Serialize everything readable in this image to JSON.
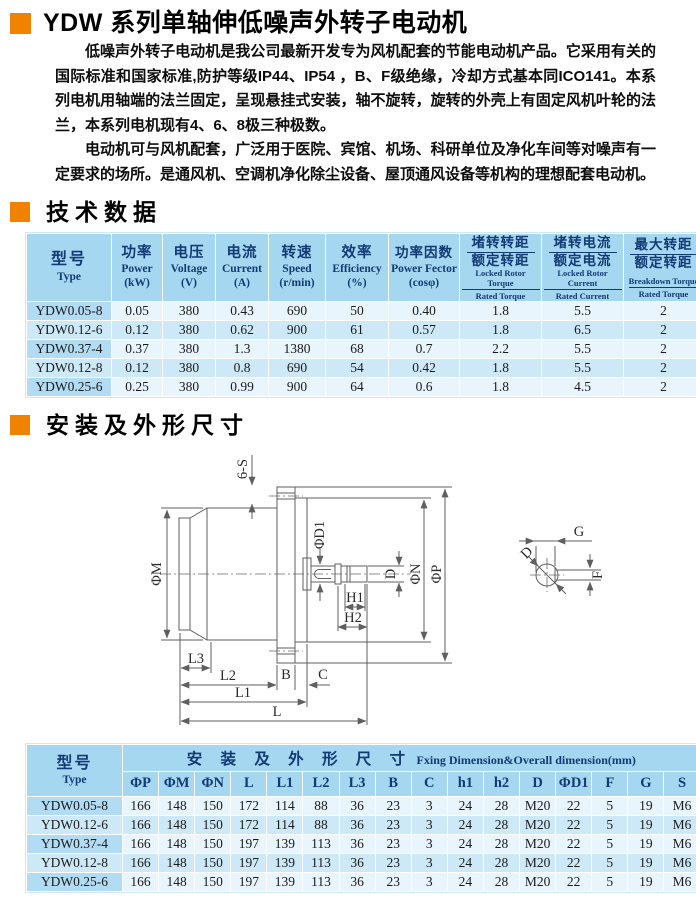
{
  "page_title": "YDW 系列单轴伸低噪声外转子电动机",
  "intro": {
    "p1": "低噪声外转子电动机是我公司最新开发专为风机配套的节能电动机产品。它采用有关的国际标准和国家标准,防护等级IP44、IP54 ，B、F级绝缘，冷却方式基本同ICO141。本系列电机用轴端的法兰固定，呈现悬挂式安装，轴不旋转，旋转的外壳上有固定风机叶轮的法兰，本系列电机现有4、6、8极三种极数。",
    "p2": "电动机可与风机配套，广泛用于医院、宾馆、机场、科研单位及净化车间等对噪声有一定要求的场所。是通风机、空调机净化除尘设备、屋顶通风设备等机构的理想配套电动机。"
  },
  "sections": {
    "tech": "技术数据",
    "install": "安装及外形尺寸"
  },
  "colors": {
    "accent_orange": "#f08200",
    "table_header_bg": "#a6d7f0",
    "row_light": "#e9f5fc",
    "row_mid": "#cde9f7",
    "model_col_bg": "#b2dcf4",
    "header_text": "#123a75"
  },
  "tech_table": {
    "col_type": {
      "zh": "型号",
      "en": "Type"
    },
    "cols": [
      {
        "zh": "功率",
        "en": "Power",
        "unit": "(kW)"
      },
      {
        "zh": "电压",
        "en": "Voltage",
        "unit": "(V)"
      },
      {
        "zh": "电流",
        "en": "Current",
        "unit": "(A)"
      },
      {
        "zh": "转速",
        "en": "Speed",
        "unit": "(r/min)"
      },
      {
        "zh": "效率",
        "en": "Efficiency",
        "unit": "(%)"
      },
      {
        "zh": "功率因数",
        "en": "Power Fector",
        "unit": "(cosφ)"
      }
    ],
    "ratio_cols": [
      {
        "zh_top": "堵转转距",
        "zh_bottom": "额定转距",
        "en_top": "Locked Rotor Torque",
        "en_bottom": "Rated Torque"
      },
      {
        "zh_top": "堵转电流",
        "zh_bottom": "额定电流",
        "en_top": "Locked Rotor Current",
        "en_bottom": "Rated Current"
      },
      {
        "zh_top": "最大转距",
        "zh_bottom": "额定转距",
        "en_top": "Breakdown Torque",
        "en_bottom": "Rated Torque"
      }
    ],
    "rows": [
      [
        "YDW0.05-8",
        "0.05",
        "380",
        "0.43",
        "690",
        "50",
        "0.40",
        "1.8",
        "5.5",
        "2"
      ],
      [
        "YDW0.12-6",
        "0.12",
        "380",
        "0.62",
        "900",
        "61",
        "0.57",
        "1.8",
        "6.5",
        "2"
      ],
      [
        "YDW0.37-4",
        "0.37",
        "380",
        "1.3",
        "1380",
        "68",
        "0.7",
        "2.2",
        "5.5",
        "2"
      ],
      [
        "YDW0.12-8",
        "0.12",
        "380",
        "0.8",
        "690",
        "54",
        "0.42",
        "1.8",
        "5.5",
        "2"
      ],
      [
        "YDW0.25-6",
        "0.25",
        "380",
        "0.99",
        "900",
        "64",
        "0.6",
        "1.8",
        "4.5",
        "2"
      ]
    ]
  },
  "dim_table": {
    "col_type": {
      "zh": "型号",
      "en": "Type"
    },
    "title_zh": "安 装 及 外 形 尺 寸",
    "title_en": "Fxing Dimension&Overall dimension(mm)",
    "headers": [
      "ΦP",
      "ΦM",
      "ΦN",
      "L",
      "L1",
      "L2",
      "L3",
      "B",
      "C",
      "h1",
      "h2",
      "D",
      "ΦD1",
      "F",
      "G",
      "S"
    ],
    "rows": [
      [
        "YDW0.05-8",
        "166",
        "148",
        "150",
        "172",
        "114",
        "88",
        "36",
        "23",
        "3",
        "24",
        "28",
        "M20",
        "22",
        "5",
        "19",
        "M6"
      ],
      [
        "YDW0.12-6",
        "166",
        "148",
        "150",
        "172",
        "114",
        "88",
        "36",
        "23",
        "3",
        "24",
        "28",
        "M20",
        "22",
        "5",
        "19",
        "M6"
      ],
      [
        "YDW0.37-4",
        "166",
        "148",
        "150",
        "197",
        "139",
        "113",
        "36",
        "23",
        "3",
        "24",
        "28",
        "M20",
        "22",
        "5",
        "19",
        "M6"
      ],
      [
        "YDW0.12-8",
        "166",
        "148",
        "150",
        "197",
        "139",
        "113",
        "36",
        "23",
        "3",
        "24",
        "28",
        "M20",
        "22",
        "5",
        "19",
        "M6"
      ],
      [
        "YDW0.25-6",
        "166",
        "148",
        "150",
        "197",
        "139",
        "113",
        "36",
        "23",
        "3",
        "24",
        "28",
        "M20",
        "22",
        "5",
        "19",
        "M6"
      ]
    ]
  },
  "diagram": {
    "labels": {
      "s6": "6-S",
      "phiM": "ΦM",
      "phiD1": "ΦD1",
      "d_shaft": "D",
      "phiN": "ΦN",
      "phiP": "ΦP",
      "h1": "H1",
      "h2": "H2",
      "l3": "L3",
      "l2": "L2",
      "l1": "L1",
      "l": "L",
      "b": "B",
      "c": "C",
      "g": "G",
      "f": "F",
      "d_detail": "D"
    }
  }
}
